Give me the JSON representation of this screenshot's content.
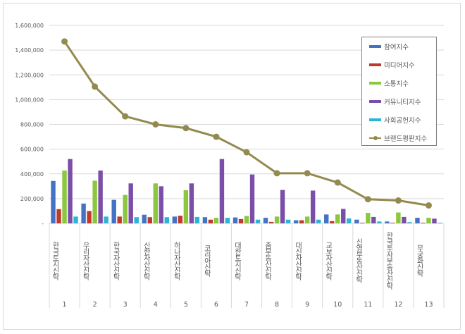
{
  "chart_data": {
    "type": "bar",
    "title": "",
    "xlabel": "",
    "ylabel": "",
    "ylim": [
      0,
      1600000
    ],
    "yticks": [
      "-",
      "200,000",
      "400,000",
      "600,000",
      "800,000",
      "1,000,000",
      "1,200,000",
      "1,400,000",
      "1,600,000"
    ],
    "grid": true,
    "legend_position": "top-right",
    "categories": [
      "한국토지신탁",
      "우리자산신탁",
      "한국자산신탁",
      "신한자산신탁",
      "하나자산신탁",
      "코리아신탁",
      "대한토지신탁",
      "줌부동산신탁",
      "대신자산신탁",
      "교보자산신탁",
      "신영부동산신탁",
      "한국투자부동산신탁",
      "무궁화신탁"
    ],
    "ranks": [
      "1",
      "2",
      "3",
      "4",
      "5",
      "6",
      "7",
      "8",
      "9",
      "10",
      "11",
      "12",
      "13"
    ],
    "series": [
      {
        "name": "참여지수",
        "type": "bar",
        "color": "#4472c4",
        "values": [
          343000,
          160000,
          190000,
          70000,
          55000,
          50000,
          48000,
          45000,
          25000,
          72000,
          30000,
          15000,
          45000
        ]
      },
      {
        "name": "미디어지수",
        "type": "bar",
        "color": "#c0392b",
        "values": [
          115000,
          100000,
          55000,
          50000,
          62000,
          30000,
          35000,
          12000,
          25000,
          18000,
          5000,
          5000,
          5000
        ]
      },
      {
        "name": "소통지수",
        "type": "bar",
        "color": "#8dc63f",
        "values": [
          427000,
          345000,
          230000,
          323000,
          268000,
          45000,
          60000,
          55000,
          55000,
          72000,
          85000,
          88000,
          45000
        ]
      },
      {
        "name": "커뮤니티지수",
        "type": "bar",
        "color": "#7b4fa8",
        "values": [
          520000,
          427000,
          323000,
          300000,
          323000,
          520000,
          395000,
          270000,
          265000,
          117000,
          52000,
          52000,
          38000
        ]
      },
      {
        "name": "사회공헌지수",
        "type": "bar",
        "color": "#2cb5d4",
        "values": [
          55000,
          55000,
          50000,
          50000,
          52000,
          45000,
          30000,
          30000,
          30000,
          40000,
          15000,
          10000,
          5000
        ]
      },
      {
        "name": "브랜드평판지수",
        "type": "line",
        "color": "#938a4f",
        "values": [
          1470000,
          1105000,
          865000,
          800000,
          770000,
          700000,
          575000,
          405000,
          405000,
          330000,
          195000,
          185000,
          145000
        ]
      }
    ]
  }
}
